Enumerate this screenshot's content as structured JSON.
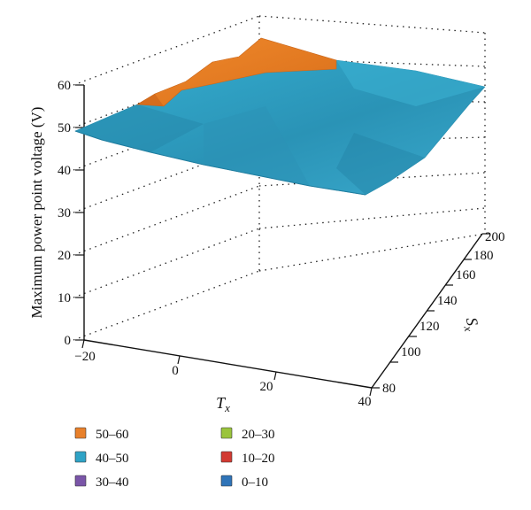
{
  "chart_data": {
    "type": "surface3d",
    "xlabel": "T",
    "xlabel_sub": "x",
    "ylabel": "S",
    "ylabel_sub": "x",
    "zlabel": "Maximum power point voltage (V)",
    "x_ticks": [
      "−20",
      "0",
      "20",
      "40"
    ],
    "y_ticks": [
      "80",
      "100",
      "120",
      "140",
      "160",
      "180",
      "200"
    ],
    "z_ticks": [
      "0",
      "10",
      "20",
      "30",
      "40",
      "50",
      "60"
    ],
    "xlim": [
      -20,
      40
    ],
    "ylim": [
      80,
      200
    ],
    "zlim": [
      0,
      60
    ],
    "x": [
      -20,
      40
    ],
    "y": [
      80,
      200
    ],
    "z": [
      [
        50,
        34
      ],
      [
        57,
        46
      ]
    ],
    "legend_position": "bottom",
    "legend": [
      {
        "label": "50–60",
        "color": "#e8802a"
      },
      {
        "label": "40–50",
        "color": "#2fa3c6"
      },
      {
        "label": "30–40",
        "color": "#7a55a8"
      },
      {
        "label": "20–30",
        "color": "#9ac43c"
      },
      {
        "label": "10–20",
        "color": "#d23a32"
      },
      {
        "label": "0–10",
        "color": "#2f74b8"
      }
    ]
  }
}
